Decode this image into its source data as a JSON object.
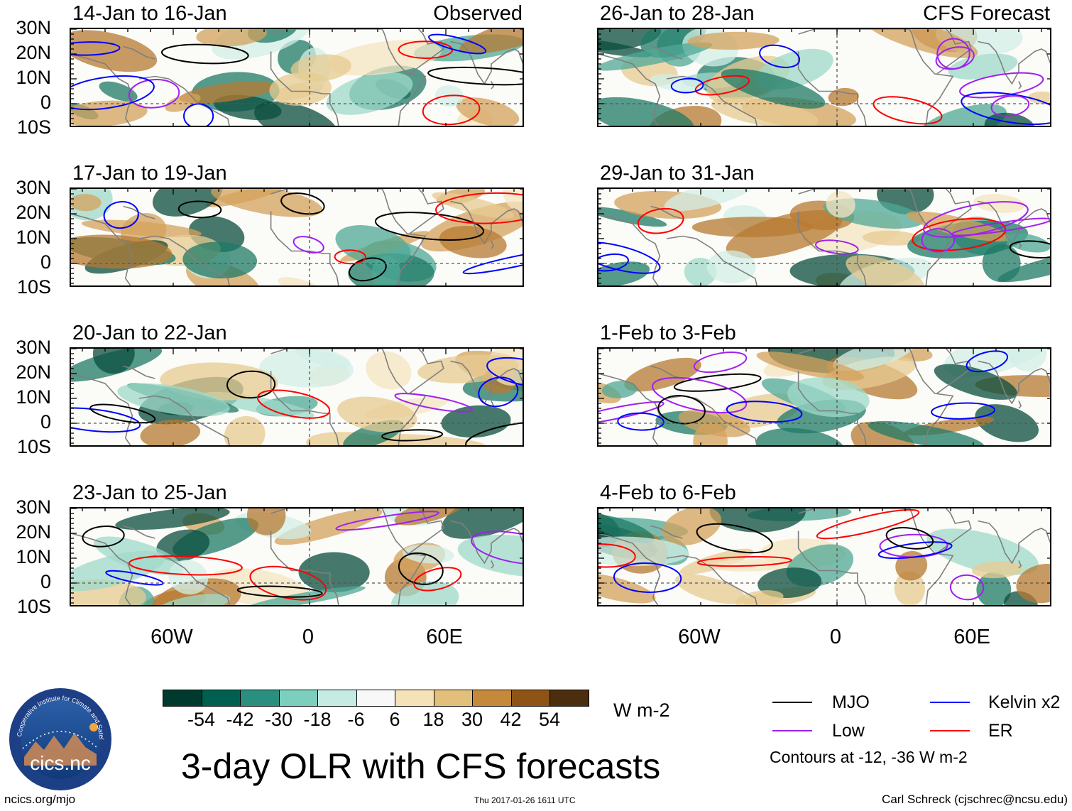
{
  "panels": [
    {
      "title": "14-Jan to 16-Jan",
      "tag": "Observed"
    },
    {
      "title": "26-Jan to 28-Jan",
      "tag": "CFS Forecast"
    },
    {
      "title": "17-Jan to 19-Jan",
      "tag": ""
    },
    {
      "title": "29-Jan to 31-Jan",
      "tag": ""
    },
    {
      "title": "20-Jan to 22-Jan",
      "tag": ""
    },
    {
      "title": "1-Feb to 3-Feb",
      "tag": ""
    },
    {
      "title": "23-Jan to 25-Jan",
      "tag": ""
    },
    {
      "title": "4-Feb to 6-Feb",
      "tag": ""
    }
  ],
  "lat_labels": [
    "30N",
    "20N",
    "10N",
    "0",
    "10S"
  ],
  "lon_labels": [
    "60W",
    "0",
    "60E"
  ],
  "colorbar": {
    "colors": [
      "#003a2e",
      "#00604f",
      "#2a8f7f",
      "#7ccfbd",
      "#c5ece3",
      "#f8f8f8",
      "#f6e2b8",
      "#e2bf7b",
      "#c4893b",
      "#8d5415",
      "#4a2e0e"
    ],
    "labels": [
      "-54",
      "-42",
      "-30",
      "-18",
      "-6",
      "6",
      "18",
      "30",
      "42",
      "54"
    ],
    "unit": "W m-2"
  },
  "legend": {
    "items": [
      {
        "label": "MJO",
        "color": "#000000"
      },
      {
        "label": "Kelvin x2",
        "color": "#0000ff"
      },
      {
        "label": "Low",
        "color": "#a020f0"
      },
      {
        "label": "ER",
        "color": "#ff0000"
      }
    ],
    "note": "Contours at -12, -36 W m-2"
  },
  "main_title": "3-day OLR with CFS forecasts",
  "logo_text": "cics.nc",
  "logo_ring_text": "Cooperative Institute for Climate and Satellites",
  "footer": {
    "left": "ncics.org/mjo",
    "center": "Thu 2017-01-26 1611 UTC",
    "right": "Carl Schreck (cjschrec@ncsu.edu)"
  }
}
